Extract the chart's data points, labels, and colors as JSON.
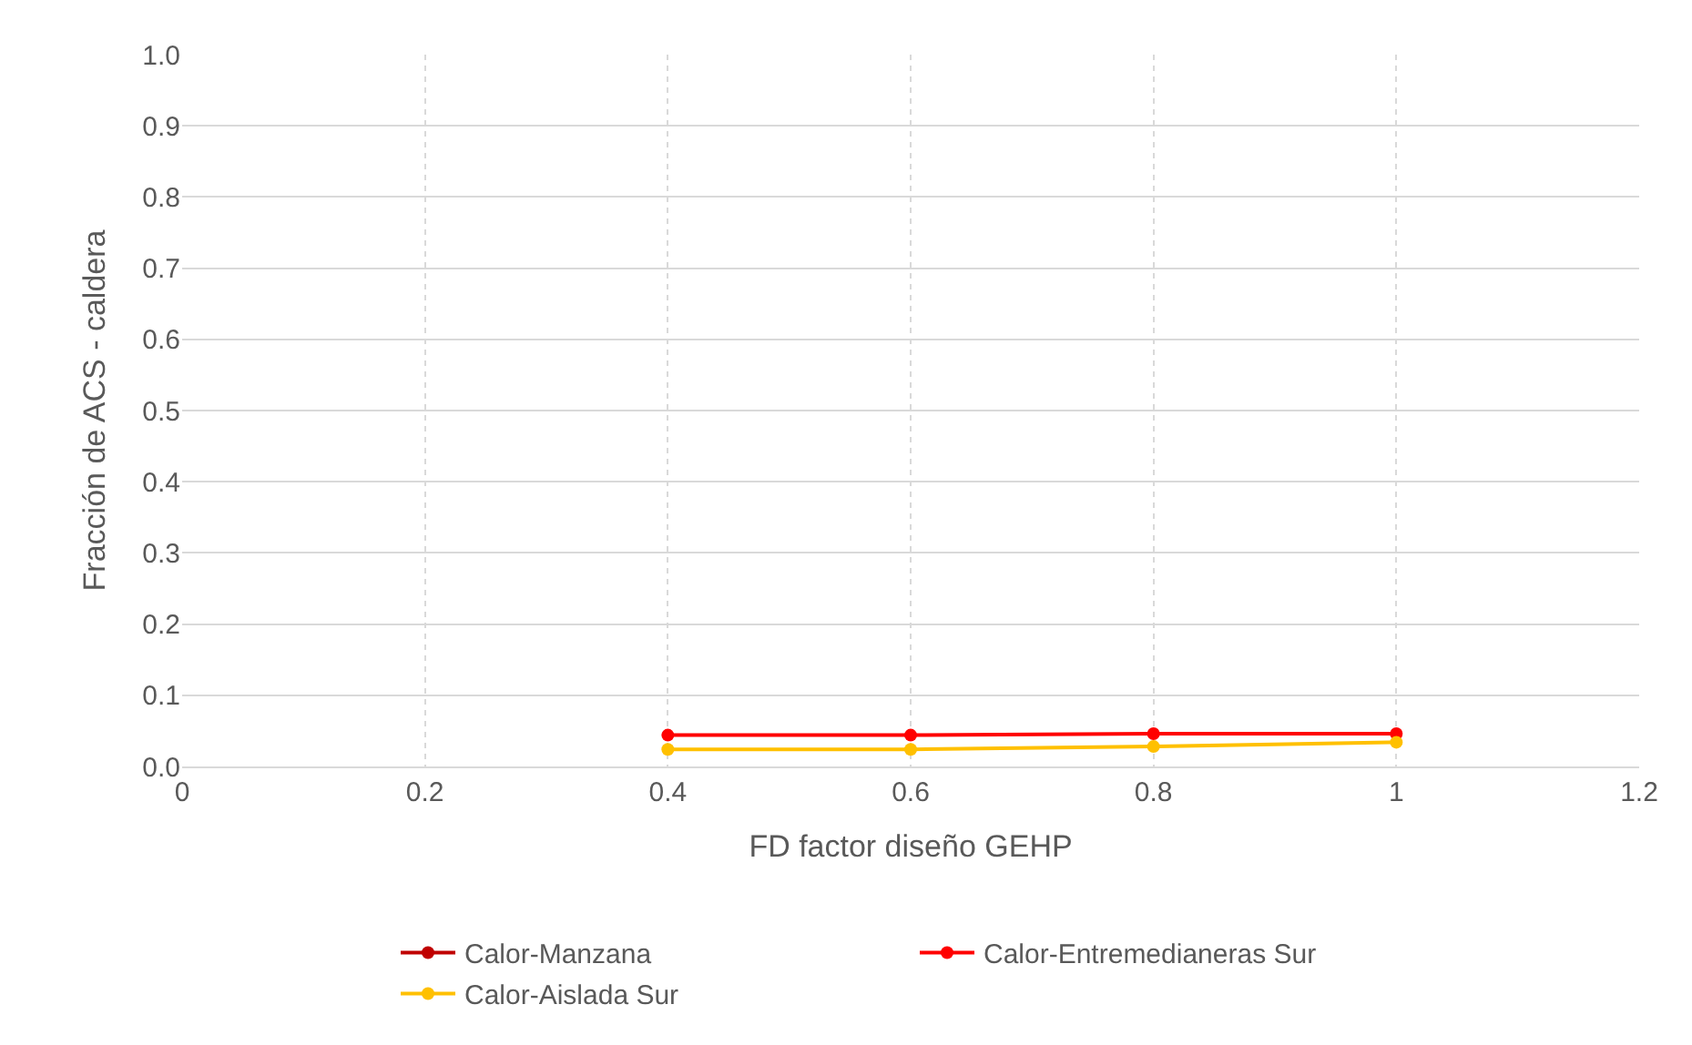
{
  "chart_data": {
    "type": "line",
    "xlabel": "FD factor diseño GEHP",
    "ylabel": "Fracción de ACS - caldera",
    "x": [
      0.4,
      0.6,
      0.8,
      1.0
    ],
    "series": [
      {
        "name": "Calor-Manzana",
        "color": "#c00000",
        "values": [
          null,
          null,
          null,
          null
        ]
      },
      {
        "name": "Calor-Entremedianeras Sur",
        "color": "#ff0000",
        "values": [
          0.044,
          0.044,
          0.046,
          0.046
        ]
      },
      {
        "name": "Calor-Aislada Sur",
        "color": "#ffc000",
        "values": [
          0.024,
          0.024,
          0.028,
          0.034
        ]
      }
    ],
    "xlim": [
      0,
      1.2
    ],
    "xticks": [
      0,
      0.2,
      0.4,
      0.6,
      0.8,
      1,
      1.2
    ],
    "ylim": [
      0,
      1.0
    ],
    "yticks": [
      {
        "value": 0,
        "label": "0.0"
      },
      {
        "value": 0.1,
        "label": "0.1"
      },
      {
        "value": 0.2,
        "label": "0.2"
      },
      {
        "value": 0.3,
        "label": "0.3"
      },
      {
        "value": 0.4,
        "label": "0.4"
      },
      {
        "value": 0.5,
        "label": "0.5"
      },
      {
        "value": 0.6,
        "label": "0.6"
      },
      {
        "value": 0.7,
        "label": "0.7"
      },
      {
        "value": 0.8,
        "label": "0.8"
      },
      {
        "value": 0.9,
        "label": "0.9"
      },
      {
        "value": 1.0,
        "label": "1.0"
      }
    ],
    "grid": true,
    "legend": "bottom",
    "marker": "circle",
    "line_style": "solid"
  }
}
